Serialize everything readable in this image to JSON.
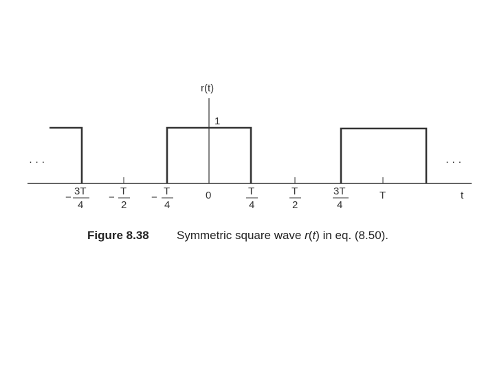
{
  "figure": {
    "y_axis_label": "r(t)",
    "t_axis_label": "t",
    "amplitude_label": "1",
    "ellipsis_left": "· · ·",
    "ellipsis_right": "· · ·",
    "ticks": {
      "neg_3t4": {
        "sign": "−",
        "num": "3T",
        "den": "4"
      },
      "neg_t2": {
        "sign": "−",
        "num": "T",
        "den": "2"
      },
      "neg_t4": {
        "sign": "−",
        "num": "T",
        "den": "4"
      },
      "zero": "0",
      "pos_t4": {
        "num": "T",
        "den": "4"
      },
      "pos_t2": {
        "num": "T",
        "den": "2"
      },
      "pos_3t4": {
        "num": "3T",
        "den": "4"
      },
      "t": "T"
    },
    "waveform": {
      "pulses": [
        {
          "from": "−∞",
          "to": "−3T/4",
          "value": 1
        },
        {
          "from": "−T/4",
          "to": "T/4",
          "value": 1
        },
        {
          "from": "3T/4",
          "to": "5T/4",
          "value": 1
        }
      ],
      "low_value": 0
    }
  },
  "caption": {
    "number": "Figure 8.38",
    "text_before": "Symmetric square wave ",
    "symbol_r": "r",
    "paren_open": "(",
    "symbol_t": "t",
    "text_after": ") in eq. (8.50)."
  }
}
